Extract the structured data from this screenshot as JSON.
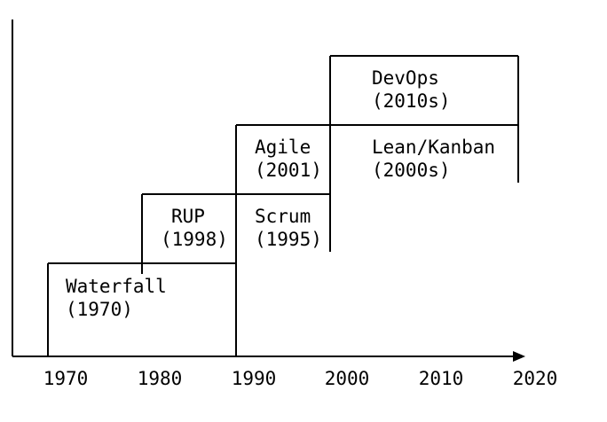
{
  "x_axis": {
    "ticks": [
      "1970",
      "1980",
      "1990",
      "2000",
      "2010",
      "2020"
    ]
  },
  "boxes": [
    {
      "name": "Waterfall",
      "year": "(1970)"
    },
    {
      "name": "RUP",
      "year": "(1998)"
    },
    {
      "name": "Scrum",
      "year": "(1995)"
    },
    {
      "name": "Agile",
      "year": "(2001)"
    },
    {
      "name": "Lean/Kanban",
      "year": "(2000s)"
    },
    {
      "name": "DevOps",
      "year": "(2010s)"
    }
  ]
}
